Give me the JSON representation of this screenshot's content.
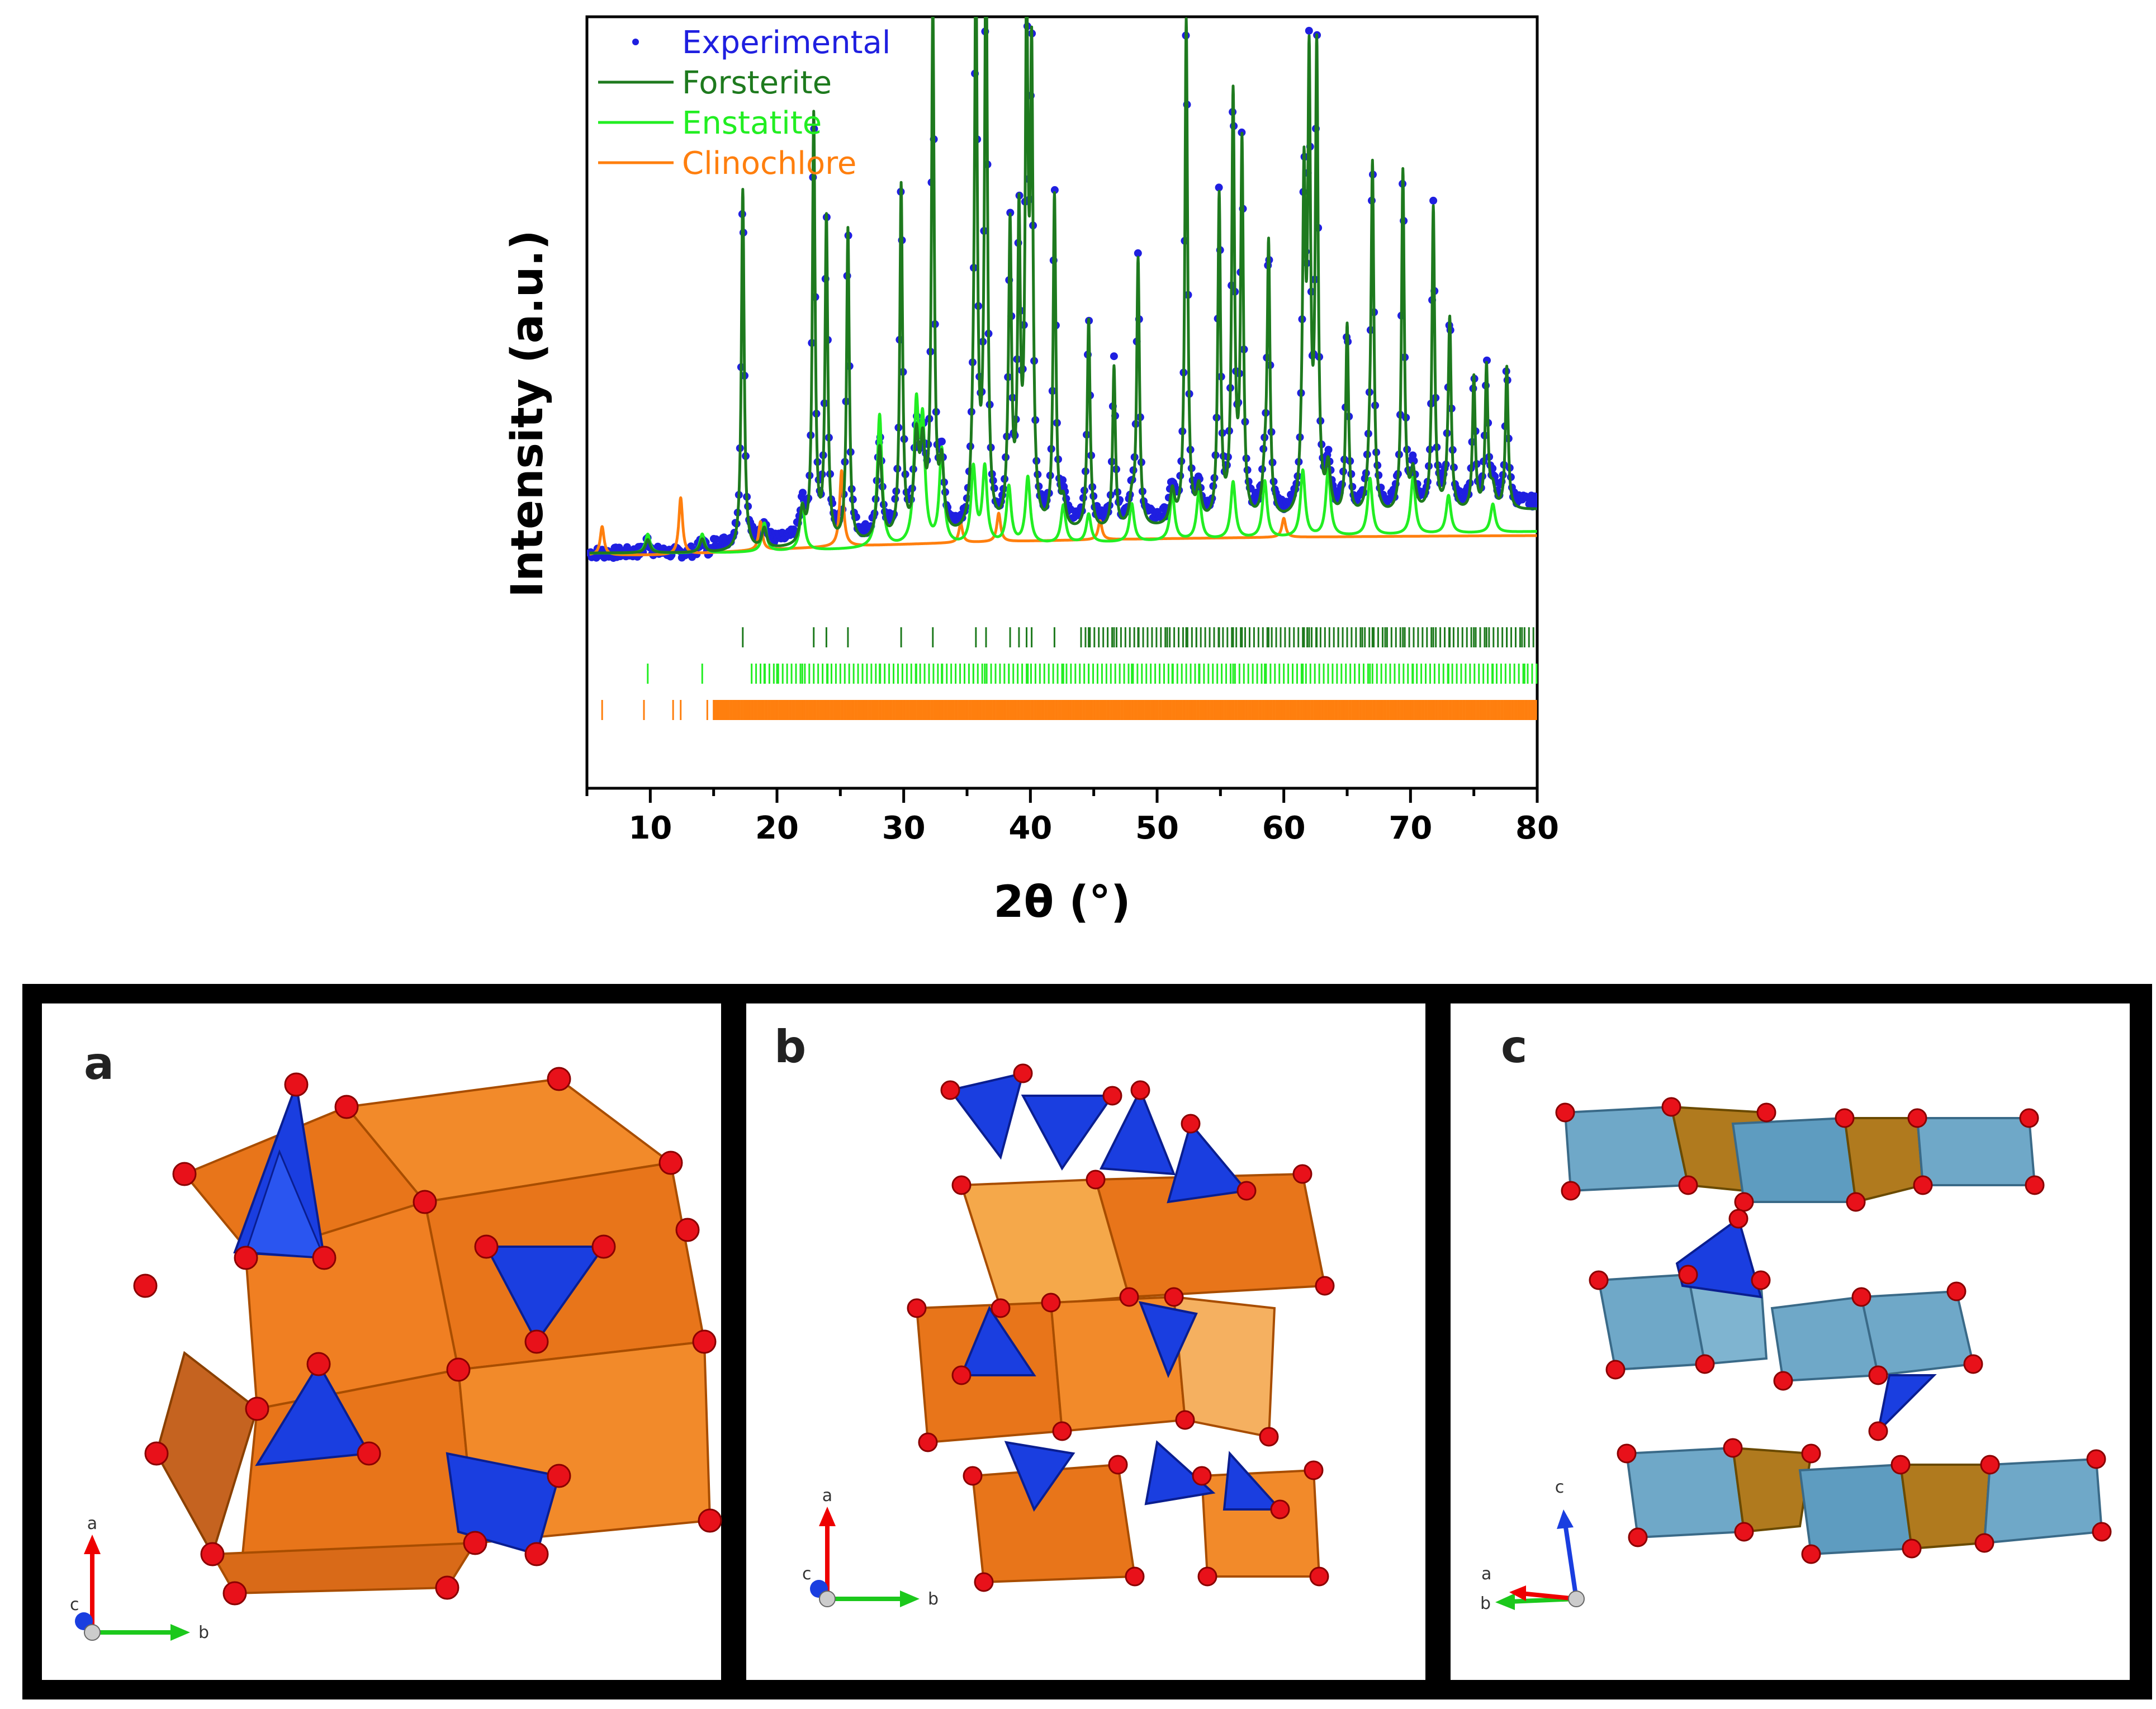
{
  "chart_data": {
    "type": "line",
    "title": "",
    "xlabel": "2θ (°)",
    "ylabel": "Intensity (a.u.)",
    "xlim": [
      5,
      80
    ],
    "ylim": [
      0,
      100
    ],
    "xticks": [
      10,
      20,
      30,
      40,
      50,
      60,
      70,
      80
    ],
    "legend": [
      "Experimental",
      "Forsterite",
      "Enstatite",
      "Clinochlore"
    ],
    "legend_position": "top-left",
    "colors": {
      "experimental": "#1f1fe0",
      "forsterite": "#1e7a1e",
      "enstatite": "#22ee22",
      "clinochlore": "#ff7f0e"
    },
    "forsterite_peaks": [
      [
        17.3,
        38
      ],
      [
        22.9,
        45
      ],
      [
        23.9,
        34
      ],
      [
        25.6,
        33
      ],
      [
        29.8,
        37
      ],
      [
        32.3,
        55
      ],
      [
        35.7,
        57
      ],
      [
        36.5,
        58
      ],
      [
        38.4,
        28
      ],
      [
        39.1,
        31
      ],
      [
        39.7,
        49
      ],
      [
        40.1,
        46
      ],
      [
        41.9,
        35
      ],
      [
        44.6,
        20
      ],
      [
        46.6,
        17
      ],
      [
        48.5,
        28
      ],
      [
        52.3,
        53
      ],
      [
        54.9,
        34
      ],
      [
        56.0,
        40
      ],
      [
        56.7,
        39
      ],
      [
        58.8,
        28
      ],
      [
        61.6,
        30
      ],
      [
        62.0,
        45
      ],
      [
        62.6,
        48
      ],
      [
        65.0,
        20
      ],
      [
        67.0,
        35
      ],
      [
        69.4,
        36
      ],
      [
        71.8,
        32
      ],
      [
        73.1,
        18
      ],
      [
        75.0,
        14
      ],
      [
        76.0,
        15
      ],
      [
        77.6,
        15
      ]
    ],
    "enstatite_peaks": [
      [
        9.8,
        2
      ],
      [
        14.1,
        2
      ],
      [
        19.0,
        3
      ],
      [
        22.0,
        5
      ],
      [
        28.1,
        14
      ],
      [
        31.0,
        14
      ],
      [
        31.5,
        12
      ],
      [
        33.0,
        10
      ],
      [
        35.5,
        8
      ],
      [
        36.4,
        8
      ],
      [
        38.3,
        6
      ],
      [
        39.8,
        7
      ],
      [
        42.6,
        4
      ],
      [
        44.6,
        3
      ],
      [
        48.0,
        4
      ],
      [
        51.2,
        5
      ],
      [
        53.3,
        5
      ],
      [
        56.0,
        6
      ],
      [
        58.5,
        6
      ],
      [
        61.5,
        7
      ],
      [
        63.5,
        7
      ],
      [
        66.8,
        6
      ],
      [
        70.2,
        6
      ],
      [
        73.0,
        4
      ],
      [
        76.5,
        3
      ]
    ],
    "clinochlore_peaks": [
      [
        6.2,
        3
      ],
      [
        12.4,
        6
      ],
      [
        18.7,
        3
      ],
      [
        25.1,
        8
      ],
      [
        34.5,
        2
      ],
      [
        37.5,
        3
      ],
      [
        45.5,
        2
      ],
      [
        60.0,
        2
      ]
    ],
    "tick_marks": {
      "forsterite": [
        17.3,
        22.9,
        23.9,
        25.6,
        29.8,
        32.3,
        35.7,
        36.5,
        38.4,
        39.1,
        39.7,
        40.1,
        41.9,
        44.6,
        46.6,
        48.5,
        50.8,
        52.3,
        53.1,
        54.9,
        56.0,
        56.7,
        58.8,
        61.6,
        62.0,
        62.6,
        64.3,
        65.0,
        66.2,
        67.0,
        68.0,
        69.4,
        71.8,
        73.1,
        75.0,
        76.0,
        77.6,
        78.8
      ],
      "enstatite": [
        9.8,
        14.1,
        19.0,
        20.0,
        22.0,
        24.0,
        28.1,
        31.0,
        33.0,
        35.5,
        36.4,
        38.3,
        39.8,
        42.6,
        44.6,
        48.0,
        51.2,
        53.3,
        56.0,
        58.5,
        61.5,
        63.5,
        66.8,
        70.2,
        73.0,
        76.5,
        79.0
      ],
      "clinochlore": [
        6.2,
        9.5,
        11.8,
        12.4,
        14.5,
        16.0,
        17.7,
        18.7,
        20.3,
        22.0,
        24.0,
        25.1,
        27.0,
        29.5,
        31.3,
        33.0,
        34.5,
        36.0,
        37.5,
        39.8,
        41.5,
        43.0,
        45.5,
        47.0,
        49.3,
        51.0,
        53.5,
        55.0,
        57.5,
        60.0,
        62.5,
        65.0,
        67.5,
        70.0,
        72.5,
        75.0,
        77.5,
        79.5
      ]
    }
  },
  "panels": [
    {
      "label": "a",
      "axes": {
        "up": "a",
        "right": "b",
        "out": "c"
      }
    },
    {
      "label": "b",
      "axes": {
        "up": "a",
        "right": "b",
        "out": "c"
      }
    },
    {
      "label": "c",
      "axes": {
        "up": "c",
        "left_top": "a",
        "left_bottom": "b"
      }
    }
  ]
}
